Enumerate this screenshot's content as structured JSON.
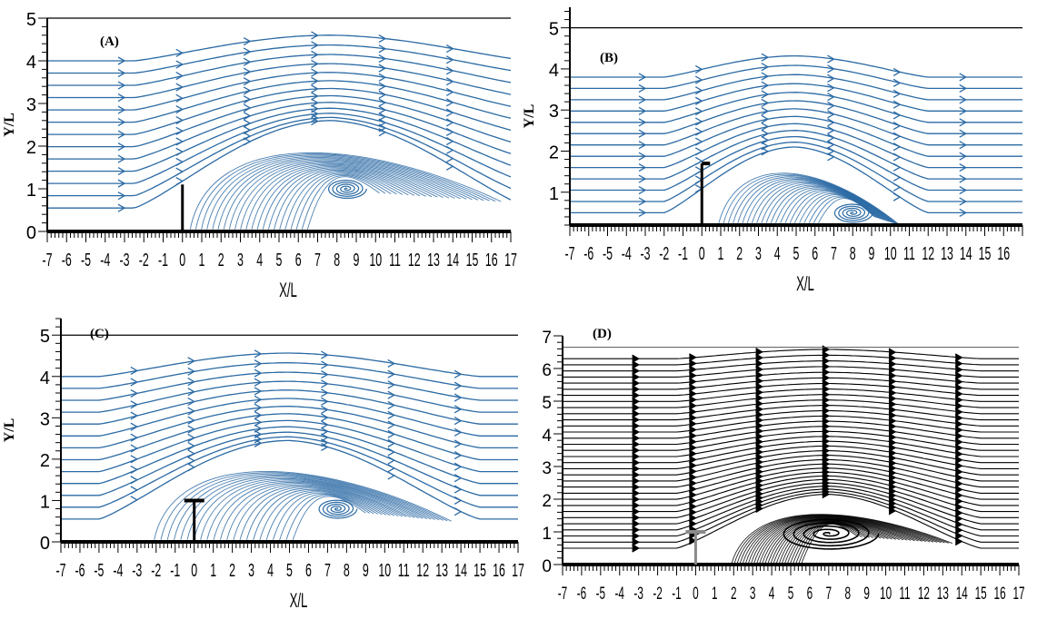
{
  "colors": {
    "blue": "#2b6aa4",
    "black": "#000000",
    "gray": "#8a8a8a"
  },
  "chart_data": [
    {
      "panel": "(A)",
      "type": "streamline",
      "xlabel": "X/L",
      "ylabel": "Y/L",
      "xlim": [
        -7,
        17
      ],
      "ylim": [
        0,
        5
      ],
      "xticks": [
        "-7",
        "-6",
        "-5",
        "-4",
        "-3",
        "-2",
        "-1",
        "0",
        "1",
        "2",
        "3",
        "4",
        "5",
        "6",
        "7",
        "8",
        "9",
        "10",
        "11",
        "12",
        "13",
        "14",
        "15",
        "16",
        "17"
      ],
      "yticks": [
        "0",
        "1",
        "2",
        "3",
        "4",
        "5"
      ],
      "top_boundary_y": 5,
      "obstacle": {
        "type": "vertical-plate",
        "x": 0,
        "height": 1.1
      },
      "vortex_center": [
        8.5,
        1.0
      ],
      "separation_bubble": {
        "start_x": 0,
        "end_x": 16.5,
        "peak_y": 2.1
      },
      "color": "#2b6aa4"
    },
    {
      "panel": "(B)",
      "type": "streamline",
      "xlabel": "X/L",
      "ylabel": "Y/L",
      "xlim": [
        -7,
        17
      ],
      "ylim": [
        0.2,
        5.5
      ],
      "xticks": [
        "-7",
        "-6",
        "-5",
        "-4",
        "-3",
        "-2",
        "-1",
        "0",
        "1",
        "2",
        "3",
        "4",
        "5",
        "6",
        "7",
        "8",
        "9",
        "10",
        "11",
        "12",
        "13",
        "14",
        "15",
        "16"
      ],
      "yticks": [
        "1",
        "2",
        "3",
        "4",
        "5"
      ],
      "top_boundary_y": 5,
      "obstacle": {
        "type": "gamma-plate",
        "x": 0,
        "height": 1.5
      },
      "vortex_center": [
        8.0,
        0.5
      ],
      "separation_bubble": {
        "start_x": 0.5,
        "end_x": 10.5,
        "peak_y": 1.65
      },
      "color": "#2b6aa4"
    },
    {
      "panel": "(C)",
      "type": "streamline",
      "xlabel": "X/L",
      "ylabel": "Y/L",
      "xlim": [
        -7,
        17
      ],
      "ylim": [
        0,
        5.4
      ],
      "xticks": [
        "-7",
        "-6",
        "-5",
        "-4",
        "-3",
        "-2",
        "-1",
        "0",
        "1",
        "2",
        "3",
        "4",
        "5",
        "6",
        "7",
        "8",
        "9",
        "10",
        "11",
        "12",
        "13",
        "14",
        "15",
        "16",
        "17"
      ],
      "yticks": [
        "0",
        "1",
        "2",
        "3",
        "4",
        "5"
      ],
      "top_boundary_y": 5,
      "obstacle": {
        "type": "t-plate",
        "x": 0,
        "height": 1.0
      },
      "vortex_center": [
        7.5,
        0.8
      ],
      "separation_bubble": {
        "start_x": -2.5,
        "end_x": 13.5,
        "peak_y": 1.95
      },
      "color": "#2b6aa4"
    },
    {
      "panel": "(D)",
      "type": "streamline",
      "xlabel": "",
      "ylabel": "",
      "xlim": [
        -7,
        17
      ],
      "ylim": [
        0,
        7
      ],
      "xticks": [
        "-7",
        "-6",
        "-5",
        "-4",
        "-3",
        "-2",
        "-1",
        "0",
        "1",
        "2",
        "3",
        "4",
        "5",
        "6",
        "7",
        "8",
        "9",
        "10",
        "11",
        "12",
        "13",
        "14",
        "15",
        "16",
        "17"
      ],
      "yticks": [
        "0",
        "1",
        "2",
        "3",
        "4",
        "5",
        "6",
        "7"
      ],
      "top_boundary_y": 6.65,
      "obstacle": {
        "type": "t-plate",
        "x": 0,
        "height": 1.0
      },
      "vortex_center": [
        7.0,
        0.95
      ],
      "separation_bubble": {
        "start_x": 1.5,
        "end_x": 13.5,
        "peak_y": 1.7
      },
      "color": "#000000"
    }
  ]
}
